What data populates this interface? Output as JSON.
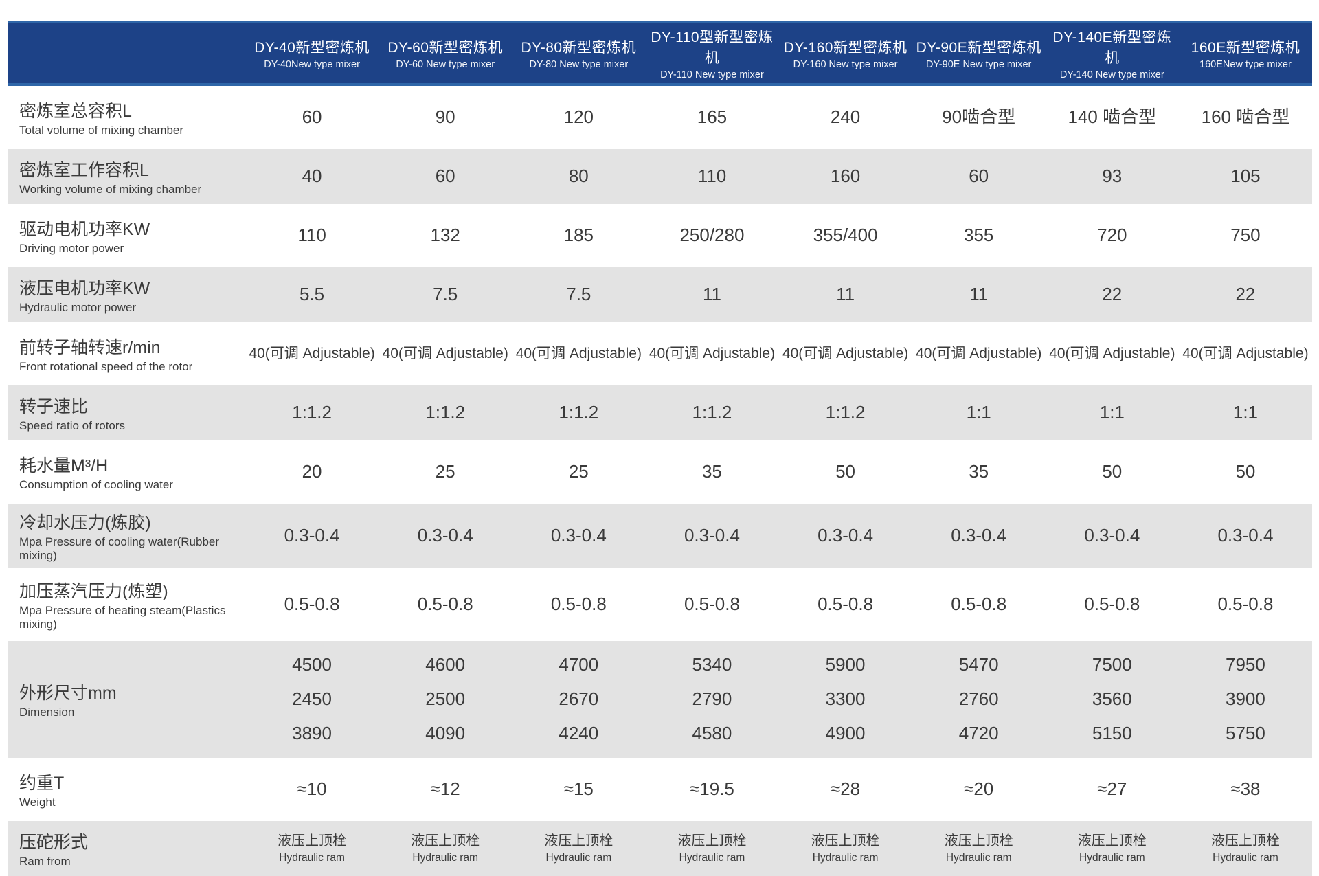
{
  "colors": {
    "header_bg": "#1d4287",
    "header_edge": "#2f66a8",
    "row_gray": "#e3e3e3",
    "header_text": "#ffffff",
    "body_text": "#3a3a3a"
  },
  "table": {
    "columns": [
      {
        "cn": "DY-40新型密炼机",
        "en": "DY-40New type mixer"
      },
      {
        "cn": "DY-60新型密炼机",
        "en": "DY-60 New type mixer"
      },
      {
        "cn": "DY-80新型密炼机",
        "en": "DY-80 New type mixer"
      },
      {
        "cn": "DY-110型新型密炼机",
        "en": "DY-110 New type mixer"
      },
      {
        "cn": "DY-160新型密炼机",
        "en": "DY-160 New type mixer"
      },
      {
        "cn": "DY-90E新型密炼机",
        "en": "DY-90E New type mixer"
      },
      {
        "cn": "DY-140E新型密炼机",
        "en": "DY-140 New type mixer"
      },
      {
        "cn": "160E新型密炼机",
        "en": "160ENew type mixer"
      }
    ],
    "rows": [
      {
        "label_cn": "密炼室总容积L",
        "label_en": "Total volume of mixing chamber",
        "shade": "white",
        "values": [
          "60",
          "90",
          "120",
          "165",
          "240",
          "90啮合型",
          "140 啮合型",
          "160 啮合型"
        ]
      },
      {
        "label_cn": "密炼室工作容积L",
        "label_en": "Working volume of mixing chamber",
        "shade": "gray",
        "values": [
          "40",
          "60",
          "80",
          "110",
          "160",
          "60",
          "93",
          "105"
        ]
      },
      {
        "label_cn": "驱动电机功率KW",
        "label_en": "Driving motor power",
        "shade": "white",
        "values": [
          "110",
          "132",
          "185",
          "250/280",
          "355/400",
          "355",
          "720",
          "750"
        ]
      },
      {
        "label_cn": "液压电机功率KW",
        "label_en": "Hydraulic motor power",
        "shade": "gray",
        "values": [
          "5.5",
          "7.5",
          "7.5",
          "11",
          "11",
          "11",
          "22",
          "22"
        ]
      },
      {
        "label_cn": "前转子轴转速r/min",
        "label_en": "Front rotational speed of the rotor",
        "shade": "white",
        "values": [
          "40(可调 Adjustable)",
          "40(可调 Adjustable)",
          "40(可调 Adjustable)",
          "40(可调 Adjustable)",
          "40(可调 Adjustable)",
          "40(可调 Adjustable)",
          "40(可调 Adjustable)",
          "40(可调 Adjustable)"
        ]
      },
      {
        "label_cn": "转子速比",
        "label_en": "Speed ratio of rotors",
        "shade": "gray",
        "values": [
          "1:1.2",
          "1:1.2",
          "1:1.2",
          "1:1.2",
          "1:1.2",
          "1:1",
          "1:1",
          "1:1"
        ]
      },
      {
        "label_cn": "耗水量M³/H",
        "label_en": "Consumption of cooling water",
        "shade": "white",
        "values": [
          "20",
          "25",
          "25",
          "35",
          "50",
          "35",
          "50",
          "50"
        ]
      },
      {
        "label_cn": "冷却水压力(炼胶)",
        "label_en": "Mpa Pressure of cooling water(Rubber mixing)",
        "shade": "gray",
        "values": [
          "0.3-0.4",
          "0.3-0.4",
          "0.3-0.4",
          "0.3-0.4",
          "0.3-0.4",
          "0.3-0.4",
          "0.3-0.4",
          "0.3-0.4"
        ]
      },
      {
        "label_cn": "加压蒸汽压力(炼塑)",
        "label_en": "Mpa Pressure of heating steam(Plastics mixing)",
        "shade": "white",
        "values": [
          "0.5-0.8",
          "0.5-0.8",
          "0.5-0.8",
          "0.5-0.8",
          "0.5-0.8",
          "0.5-0.8",
          "0.5-0.8",
          "0.5-0.8"
        ]
      },
      {
        "label_cn": "外形尺寸mm",
        "label_en": "Dimension",
        "shade": "gray",
        "tall": true,
        "values": [
          [
            "4500",
            "2450",
            "3890"
          ],
          [
            "4600",
            "2500",
            "4090"
          ],
          [
            "4700",
            "2670",
            "4240"
          ],
          [
            "5340",
            "2790",
            "4580"
          ],
          [
            "5900",
            "3300",
            "4900"
          ],
          [
            "5470",
            "2760",
            "4720"
          ],
          [
            "7500",
            "3560",
            "5150"
          ],
          [
            "7950",
            "3900",
            "5750"
          ]
        ]
      },
      {
        "label_cn": "约重T",
        "label_en": "Weight",
        "shade": "white",
        "values": [
          "≈10",
          "≈12",
          "≈15",
          "≈19.5",
          "≈28",
          "≈20",
          "≈27",
          "≈38"
        ]
      },
      {
        "label_cn": "压砣形式",
        "label_en": "Ram from",
        "shade": "gray",
        "values": [
          {
            "cn": "液压上顶栓",
            "en": "Hydraulic ram"
          },
          {
            "cn": "液压上顶栓",
            "en": "Hydraulic ram"
          },
          {
            "cn": "液压上顶栓",
            "en": "Hydraulic ram"
          },
          {
            "cn": "液压上顶栓",
            "en": "Hydraulic ram"
          },
          {
            "cn": "液压上顶栓",
            "en": "Hydraulic ram"
          },
          {
            "cn": "液压上顶栓",
            "en": "Hydraulic ram"
          },
          {
            "cn": "液压上顶栓",
            "en": "Hydraulic ram"
          },
          {
            "cn": "液压上顶栓",
            "en": "Hydraulic ram"
          }
        ]
      }
    ]
  }
}
